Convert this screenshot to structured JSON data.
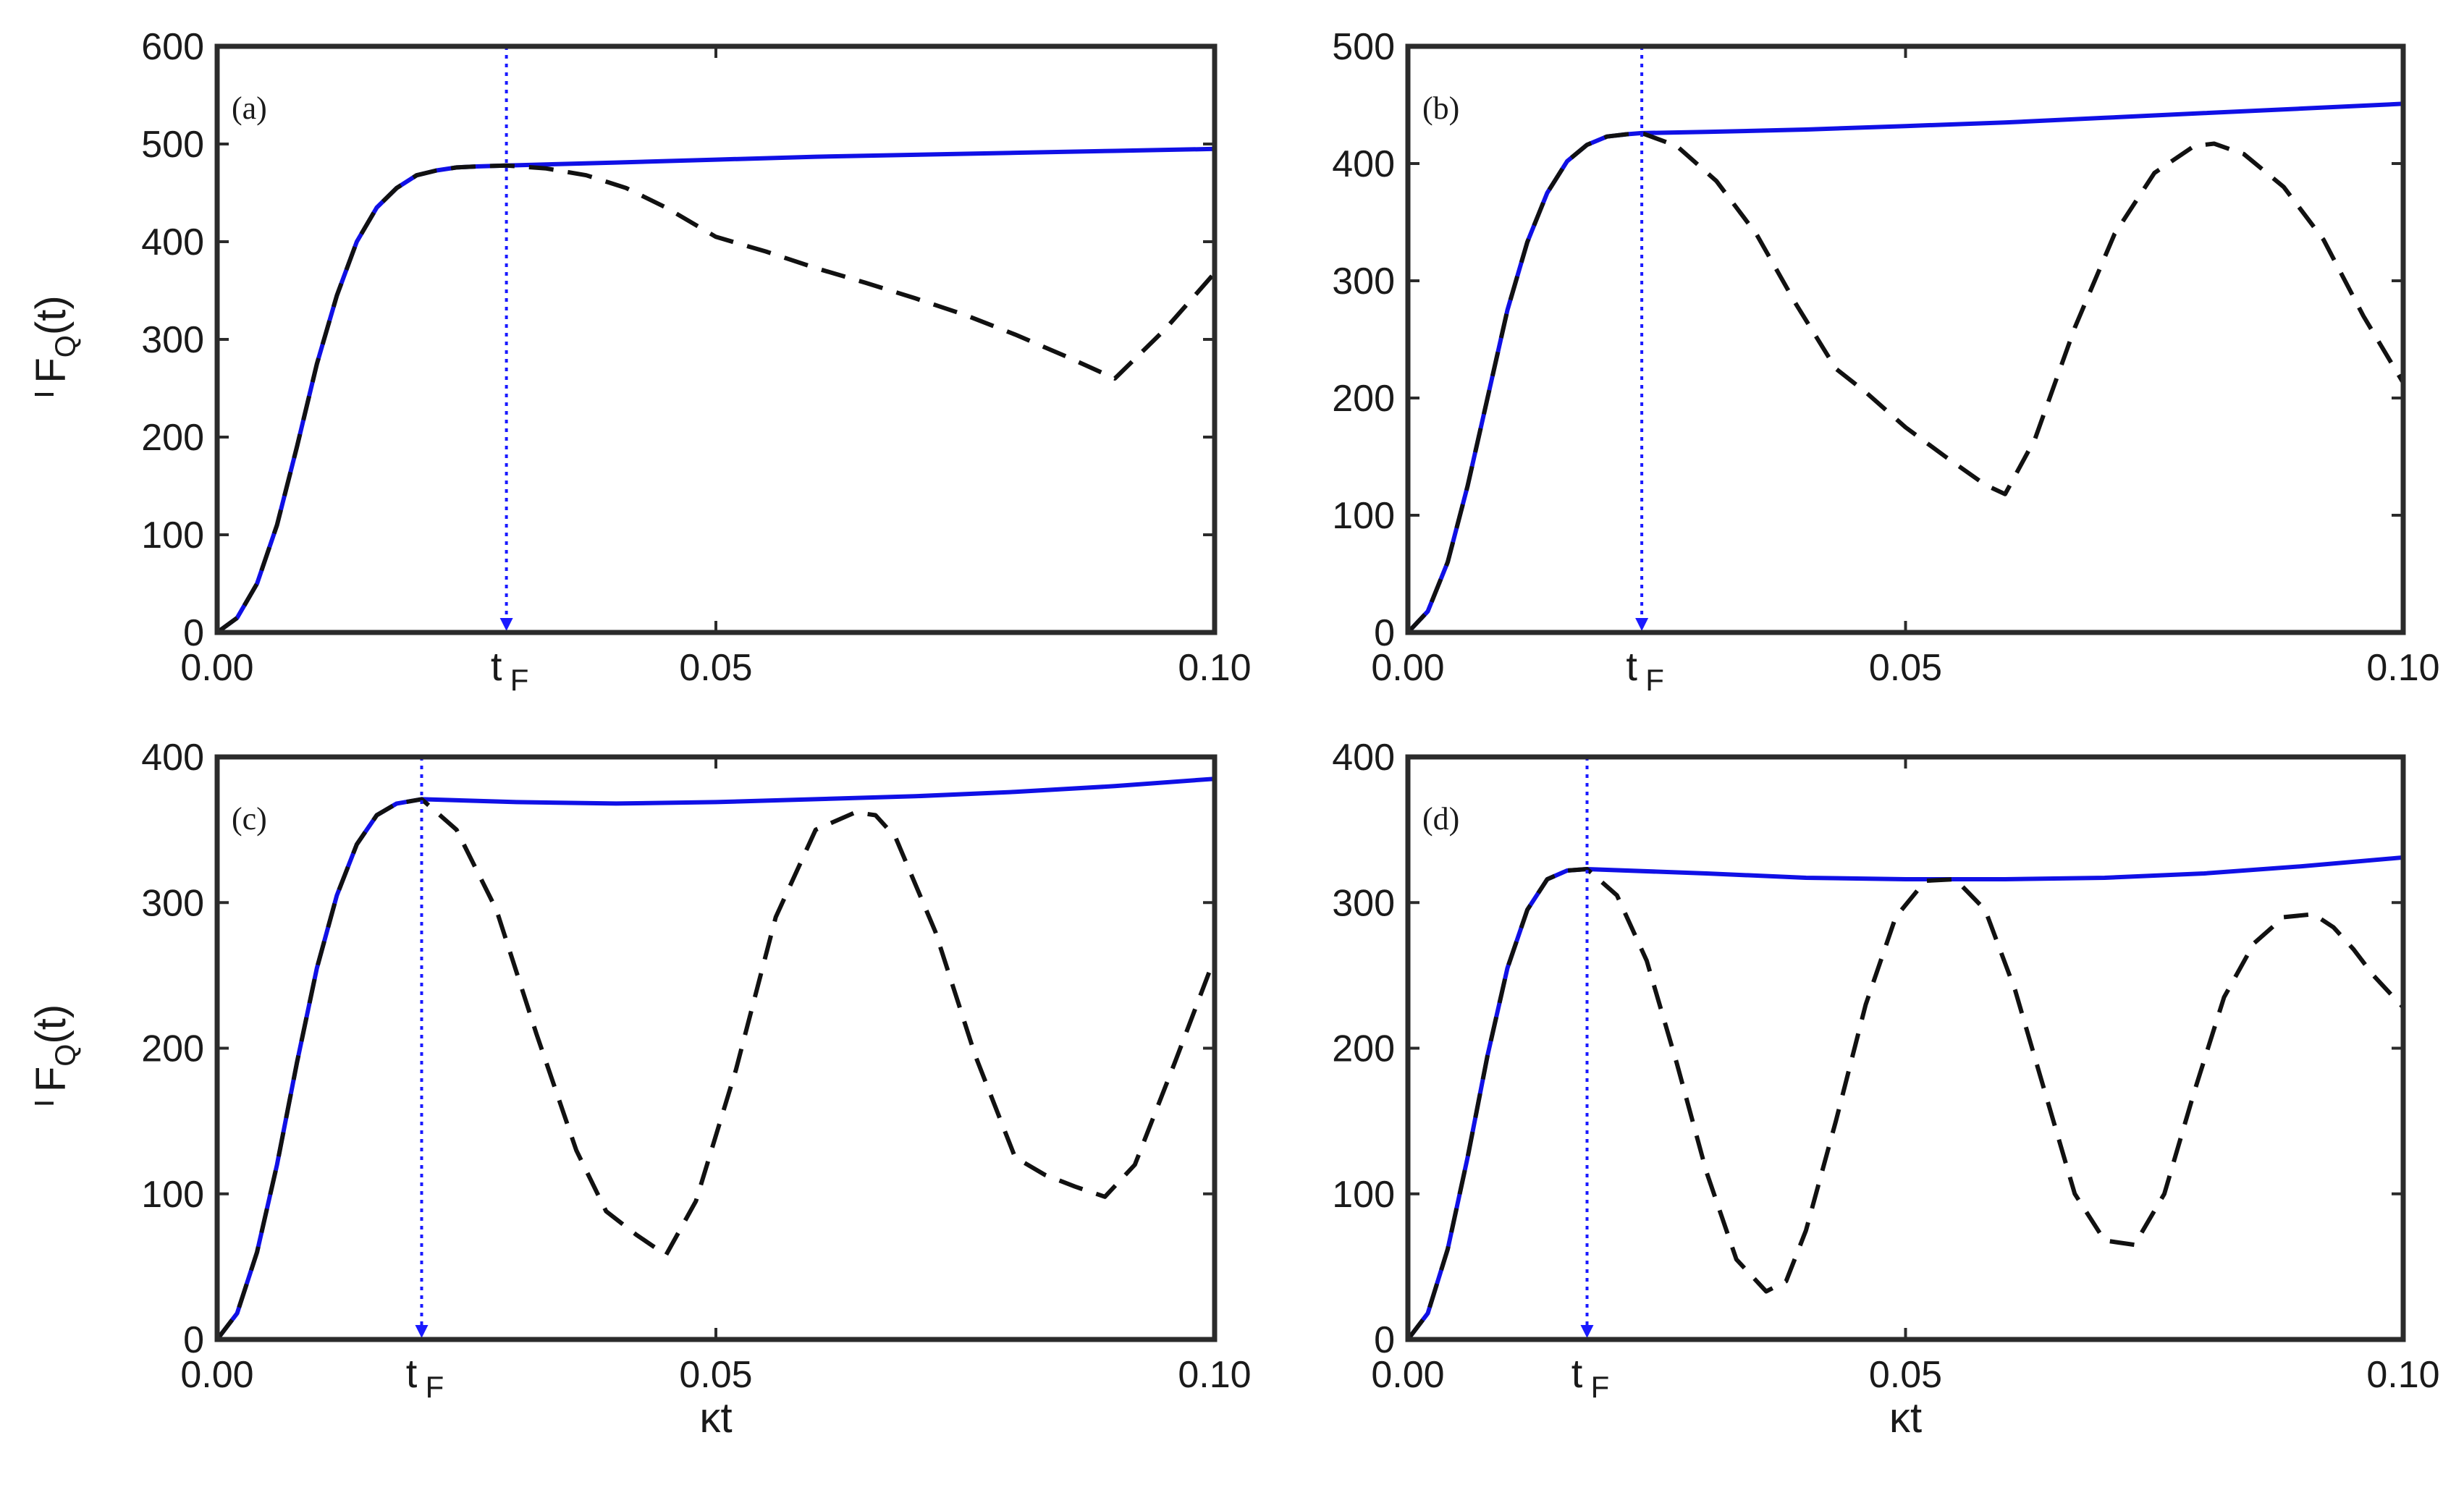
{
  "colors": {
    "optimal_line": "#1010e6",
    "free_line": "#111111",
    "axes": "#2b2b2b",
    "marker": "#1a1aff"
  },
  "shared": {
    "ylabel_base": "F",
    "ylabel_sub": "Q",
    "ylabel_arg": "(t)",
    "xlabel": "κt",
    "tf_base": "t",
    "tf_sub": "F",
    "x_tick_labels": [
      "0.00",
      "0.05",
      "0.10"
    ]
  },
  "chart_data": [
    {
      "panel": "(a)",
      "type": "line",
      "xlim": [
        0,
        0.1
      ],
      "ylim": [
        0,
        600
      ],
      "y_ticks": [
        0,
        100,
        200,
        300,
        400,
        500,
        600
      ],
      "y_tick_labels": [
        "0",
        "100",
        "200",
        "300",
        "400",
        "500",
        "600"
      ],
      "t_F": 0.029,
      "series": [
        {
          "style": "solid-blue",
          "x": [
            0,
            0.002,
            0.004,
            0.006,
            0.008,
            0.01,
            0.012,
            0.014,
            0.016,
            0.018,
            0.02,
            0.022,
            0.024,
            0.026,
            0.029,
            0.04,
            0.05,
            0.06,
            0.07,
            0.08,
            0.09,
            0.1
          ],
          "y": [
            0,
            15,
            50,
            110,
            190,
            275,
            345,
            400,
            435,
            455,
            468,
            473,
            476,
            477,
            478,
            481,
            484,
            487,
            489,
            491,
            493,
            495
          ]
        },
        {
          "style": "dashed-black",
          "x": [
            0,
            0.002,
            0.004,
            0.006,
            0.008,
            0.01,
            0.012,
            0.014,
            0.016,
            0.018,
            0.02,
            0.022,
            0.024,
            0.026,
            0.029,
            0.033,
            0.037,
            0.041,
            0.045,
            0.05,
            0.055,
            0.06,
            0.065,
            0.07,
            0.075,
            0.08,
            0.085,
            0.09,
            0.095,
            0.1
          ],
          "y": [
            0,
            15,
            50,
            110,
            190,
            275,
            345,
            400,
            435,
            455,
            468,
            473,
            476,
            477,
            478,
            475,
            468,
            455,
            435,
            405,
            390,
            373,
            358,
            342,
            325,
            305,
            283,
            260,
            310,
            368
          ]
        }
      ]
    },
    {
      "panel": "(b)",
      "type": "line",
      "xlim": [
        0,
        0.1
      ],
      "ylim": [
        0,
        500
      ],
      "y_ticks": [
        0,
        100,
        200,
        300,
        400,
        500
      ],
      "y_tick_labels": [
        "0",
        "100",
        "200",
        "300",
        "400",
        "500"
      ],
      "t_F": 0.0235,
      "series": [
        {
          "style": "solid-blue",
          "x": [
            0,
            0.002,
            0.004,
            0.006,
            0.008,
            0.01,
            0.012,
            0.014,
            0.016,
            0.018,
            0.02,
            0.022,
            0.0235,
            0.03,
            0.04,
            0.05,
            0.06,
            0.07,
            0.08,
            0.09,
            0.1
          ],
          "y": [
            0,
            18,
            60,
            125,
            200,
            275,
            333,
            375,
            402,
            416,
            423,
            425,
            426,
            427,
            429,
            432,
            435,
            439,
            443,
            447,
            451
          ]
        },
        {
          "style": "dashed-black",
          "x": [
            0,
            0.002,
            0.004,
            0.006,
            0.008,
            0.01,
            0.012,
            0.014,
            0.016,
            0.018,
            0.02,
            0.022,
            0.0235,
            0.027,
            0.031,
            0.035,
            0.039,
            0.043,
            0.046,
            0.05,
            0.054,
            0.058,
            0.06,
            0.063,
            0.067,
            0.071,
            0.075,
            0.079,
            0.081,
            0.084,
            0.088,
            0.092,
            0.096,
            0.1
          ],
          "y": [
            0,
            18,
            60,
            125,
            200,
            275,
            333,
            375,
            402,
            416,
            423,
            425,
            426,
            415,
            385,
            340,
            280,
            225,
            205,
            175,
            150,
            126,
            118,
            165,
            260,
            340,
            392,
            415,
            417,
            408,
            380,
            335,
            270,
            213
          ]
        }
      ]
    },
    {
      "panel": "(c)",
      "type": "line",
      "xlim": [
        0,
        0.1
      ],
      "ylim": [
        0,
        400
      ],
      "y_ticks": [
        0,
        100,
        200,
        300,
        400
      ],
      "y_tick_labels": [
        "0",
        "100",
        "200",
        "300",
        "400"
      ],
      "t_F": 0.0205,
      "series": [
        {
          "style": "solid-blue",
          "x": [
            0,
            0.002,
            0.004,
            0.006,
            0.008,
            0.01,
            0.012,
            0.014,
            0.016,
            0.018,
            0.0205,
            0.03,
            0.04,
            0.05,
            0.06,
            0.07,
            0.08,
            0.09,
            0.1
          ],
          "y": [
            0,
            18,
            60,
            120,
            190,
            255,
            305,
            340,
            360,
            368,
            371,
            369,
            368,
            369,
            371,
            373,
            376,
            380,
            385
          ]
        },
        {
          "style": "dashed-black",
          "x": [
            0,
            0.002,
            0.004,
            0.006,
            0.008,
            0.01,
            0.012,
            0.014,
            0.016,
            0.018,
            0.0205,
            0.024,
            0.028,
            0.032,
            0.036,
            0.039,
            0.042,
            0.045,
            0.048,
            0.052,
            0.056,
            0.06,
            0.064,
            0.066,
            0.068,
            0.072,
            0.076,
            0.08,
            0.083,
            0.086,
            0.089,
            0.092,
            0.096,
            0.1
          ],
          "y": [
            0,
            18,
            60,
            120,
            190,
            255,
            305,
            340,
            360,
            368,
            371,
            350,
            295,
            210,
            130,
            88,
            72,
            58,
            95,
            185,
            290,
            350,
            362,
            360,
            345,
            280,
            195,
            125,
            113,
            105,
            98,
            120,
            190,
            262
          ]
        }
      ]
    },
    {
      "panel": "(d)",
      "type": "line",
      "xlim": [
        0,
        0.1
      ],
      "ylim": [
        0,
        400
      ],
      "y_ticks": [
        0,
        100,
        200,
        300,
        400
      ],
      "y_tick_labels": [
        "0",
        "100",
        "200",
        "300",
        "400"
      ],
      "t_F": 0.018,
      "series": [
        {
          "style": "solid-blue",
          "x": [
            0,
            0.002,
            0.004,
            0.006,
            0.008,
            0.01,
            0.012,
            0.014,
            0.016,
            0.018,
            0.03,
            0.04,
            0.05,
            0.06,
            0.07,
            0.08,
            0.09,
            0.1
          ],
          "y": [
            0,
            18,
            62,
            125,
            195,
            255,
            295,
            316,
            322,
            323,
            320,
            317,
            316,
            316,
            317,
            320,
            325,
            331
          ]
        },
        {
          "style": "dashed-black",
          "x": [
            0,
            0.002,
            0.004,
            0.006,
            0.008,
            0.01,
            0.012,
            0.014,
            0.016,
            0.018,
            0.021,
            0.024,
            0.027,
            0.03,
            0.033,
            0.036,
            0.038,
            0.04,
            0.043,
            0.046,
            0.049,
            0.052,
            0.055,
            0.058,
            0.061,
            0.064,
            0.067,
            0.07,
            0.073,
            0.076,
            0.079,
            0.082,
            0.085,
            0.088,
            0.091,
            0.093,
            0.095,
            0.097,
            0.1
          ],
          "y": [
            0,
            18,
            62,
            125,
            195,
            255,
            295,
            316,
            322,
            323,
            305,
            260,
            190,
            115,
            55,
            33,
            40,
            75,
            150,
            230,
            290,
            315,
            316,
            295,
            240,
            170,
            100,
            68,
            65,
            100,
            170,
            235,
            272,
            290,
            292,
            283,
            268,
            250,
            228
          ]
        }
      ]
    }
  ]
}
